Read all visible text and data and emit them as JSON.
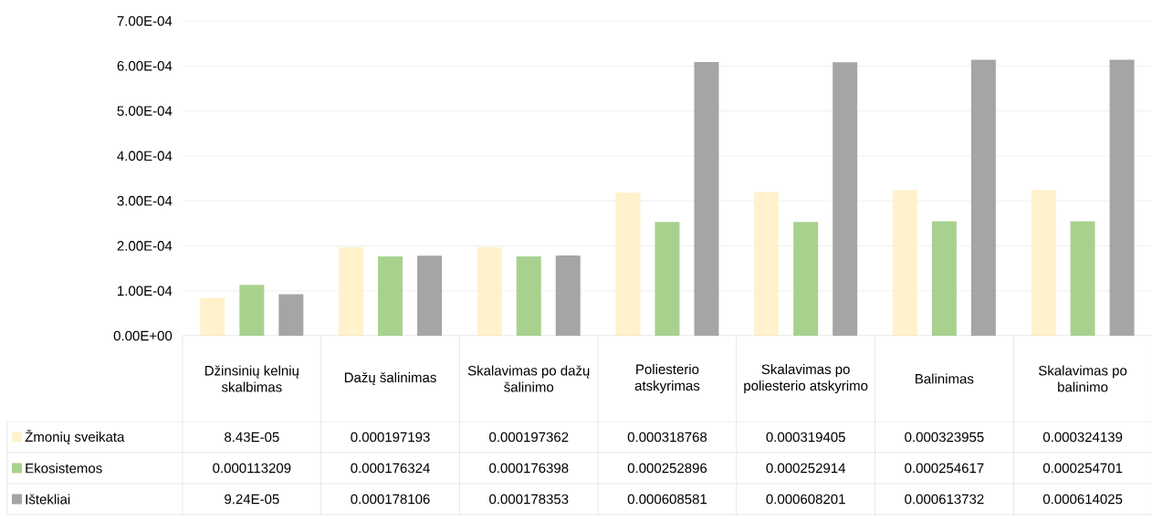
{
  "chart_data": {
    "type": "bar",
    "categories": [
      "Džinsinių kelnių skalbimas",
      "Dažų šalinimas",
      "Skalavimas po dažų šalinimo",
      "Poliesterio atskyrimas",
      "Skalavimas po poliesterio atskyrimo",
      "Balinimas",
      "Skalavimas po balinimo"
    ],
    "series": [
      {
        "name": "Žmonių sveikata",
        "color": "#fff2cc",
        "values": [
          8.43e-05,
          0.000197193,
          0.000197362,
          0.000318768,
          0.000319405,
          0.000323955,
          0.000324139
        ],
        "value_labels": [
          "8.43E-05",
          "0.000197193",
          "0.000197362",
          "0.000318768",
          "0.000319405",
          "0.000323955",
          "0.000324139"
        ]
      },
      {
        "name": "Ekosistemos",
        "color": "#a9d18e",
        "values": [
          0.000113209,
          0.000176324,
          0.000176398,
          0.000252896,
          0.000252914,
          0.000254617,
          0.000254701
        ],
        "value_labels": [
          "0.000113209",
          "0.000176324",
          "0.000176398",
          "0.000252896",
          "0.000252914",
          "0.000254617",
          "0.000254701"
        ]
      },
      {
        "name": "Ištekliai",
        "color": "#a5a5a5",
        "values": [
          9.24e-05,
          0.000178106,
          0.000178353,
          0.000608581,
          0.000608201,
          0.000613732,
          0.000614025
        ],
        "value_labels": [
          "9.24E-05",
          "0.000178106",
          "0.000178353",
          "0.000608581",
          "0.000608201",
          "0.000613732",
          "0.000614025"
        ]
      }
    ],
    "ylim": [
      0,
      0.0007
    ],
    "yticks": [
      {
        "value": 0,
        "label": "0.00E+00"
      },
      {
        "value": 0.0001,
        "label": "1.00E-04"
      },
      {
        "value": 0.0002,
        "label": "2.00E-04"
      },
      {
        "value": 0.0003,
        "label": "3.00E-04"
      },
      {
        "value": 0.0004,
        "label": "4.00E-04"
      },
      {
        "value": 0.0005,
        "label": "5.00E-04"
      },
      {
        "value": 0.0006,
        "label": "6.00E-04"
      },
      {
        "value": 0.0007,
        "label": "7.00E-04"
      }
    ],
    "grid": "y",
    "legend": "bottom"
  }
}
